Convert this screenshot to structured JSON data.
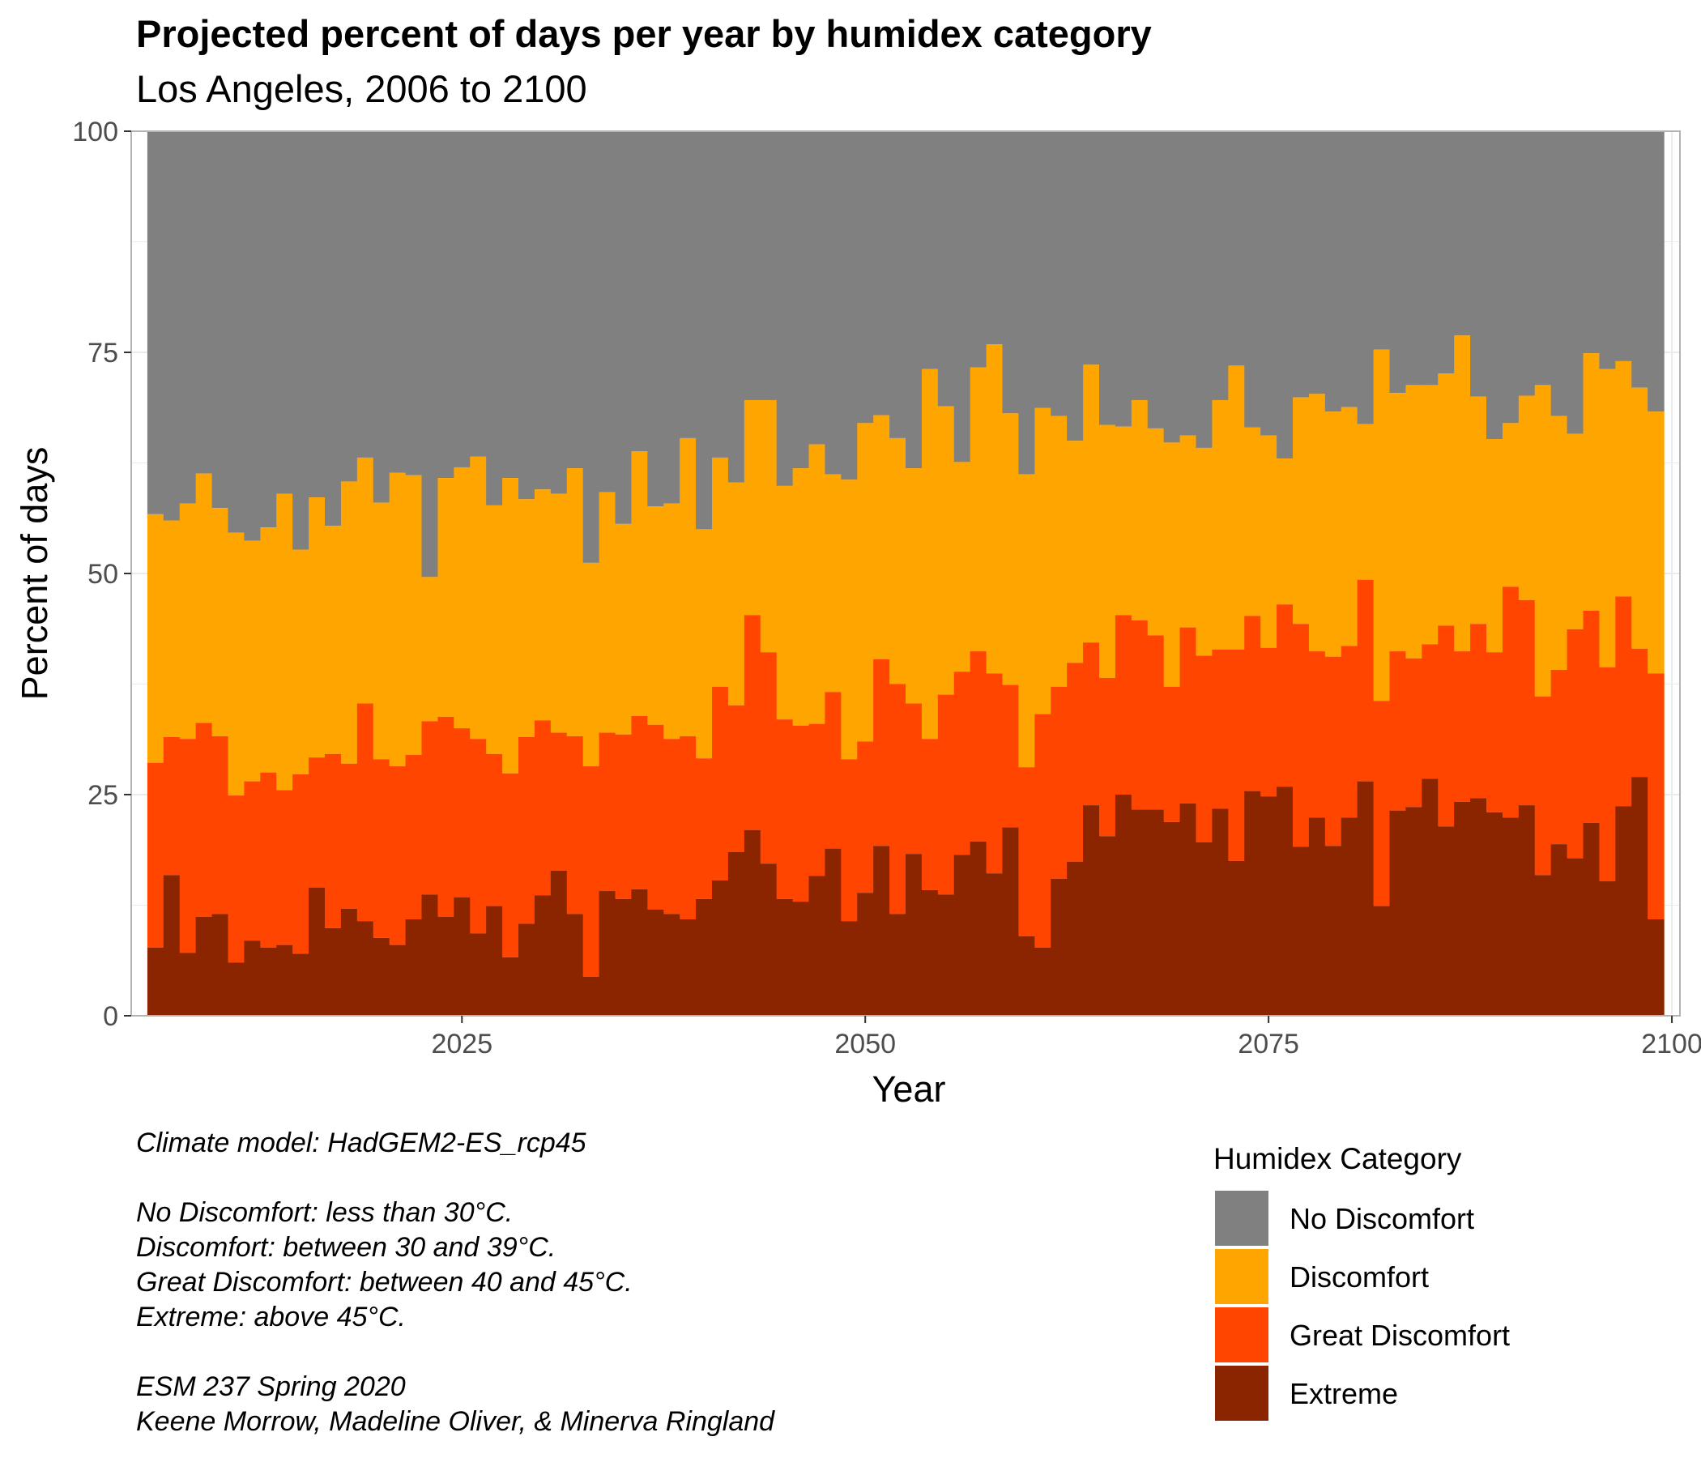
{
  "chart_data": {
    "type": "bar",
    "stacked": true,
    "title": "Projected percent of days per year by humidex category",
    "subtitle": "Los Angeles, 2006 to 2100",
    "xlabel": "Year",
    "ylabel": "Percent of days",
    "xlim": [
      2004.5,
      2100.5
    ],
    "ylim": [
      0,
      100
    ],
    "x_ticks": [
      "2025",
      "2050",
      "2075",
      "2100"
    ],
    "y_ticks": [
      "0",
      "25",
      "50",
      "75",
      "100"
    ],
    "grid": true,
    "legend": {
      "title": "Humidex Category",
      "position": "bottom-right",
      "entries": [
        "No Discomfort",
        "Discomfort",
        "Great Discomfort",
        "Extreme"
      ]
    },
    "colors": {
      "No Discomfort": "#808080",
      "Discomfort": "#FFA500",
      "Great Discomfort": "#FF4500",
      "Extreme": "#8B2500"
    },
    "years": [
      2006,
      2007,
      2008,
      2009,
      2010,
      2011,
      2012,
      2013,
      2014,
      2015,
      2016,
      2017,
      2018,
      2019,
      2020,
      2021,
      2022,
      2023,
      2024,
      2025,
      2026,
      2027,
      2028,
      2029,
      2030,
      2031,
      2032,
      2033,
      2034,
      2035,
      2036,
      2037,
      2038,
      2039,
      2040,
      2041,
      2042,
      2043,
      2044,
      2045,
      2046,
      2047,
      2048,
      2049,
      2050,
      2051,
      2052,
      2053,
      2054,
      2055,
      2056,
      2057,
      2058,
      2059,
      2060,
      2061,
      2062,
      2063,
      2064,
      2065,
      2066,
      2067,
      2068,
      2069,
      2070,
      2071,
      2072,
      2073,
      2074,
      2075,
      2076,
      2077,
      2078,
      2079,
      2080,
      2081,
      2082,
      2083,
      2084,
      2085,
      2086,
      2087,
      2088,
      2089,
      2090,
      2091,
      2092,
      2093,
      2094,
      2095,
      2096,
      2097,
      2098,
      2099
    ],
    "extreme_top": [
      7.7,
      15.9,
      7.1,
      11.2,
      11.5,
      6.0,
      8.5,
      7.7,
      8.0,
      7.0,
      14.5,
      9.9,
      12.1,
      10.7,
      8.8,
      8.0,
      10.9,
      13.7,
      11.2,
      13.4,
      9.3,
      12.4,
      6.6,
      10.4,
      13.6,
      16.4,
      11.5,
      4.4,
      14.1,
      13.2,
      14.3,
      12.0,
      11.5,
      10.9,
      13.2,
      15.3,
      18.5,
      21.0,
      17.2,
      13.2,
      12.9,
      15.8,
      18.9,
      10.7,
      13.9,
      19.2,
      11.5,
      18.3,
      14.2,
      13.7,
      18.2,
      19.7,
      16.1,
      21.3,
      9.0,
      7.7,
      15.5,
      17.4,
      23.8,
      20.3,
      25.0,
      23.3,
      23.3,
      21.9,
      24.0,
      19.6,
      23.4,
      17.5,
      25.4,
      24.8,
      25.9,
      19.1,
      22.4,
      19.2,
      22.4,
      26.5,
      12.4,
      23.2,
      23.6,
      26.8,
      21.4,
      24.2,
      24.6,
      23.0,
      22.4,
      23.8,
      15.9,
      19.4,
      17.8,
      21.8,
      15.2,
      23.7,
      27.0,
      10.9
    ],
    "great_discomfort_top": [
      28.6,
      31.5,
      31.3,
      33.1,
      31.6,
      24.9,
      26.5,
      27.5,
      25.5,
      27.3,
      29.2,
      29.6,
      28.5,
      35.3,
      29.0,
      28.2,
      29.5,
      33.3,
      33.8,
      32.5,
      31.3,
      29.6,
      27.4,
      31.5,
      33.4,
      32.0,
      31.6,
      28.2,
      32.0,
      31.8,
      33.9,
      32.9,
      31.3,
      31.6,
      29.1,
      37.2,
      35.1,
      45.3,
      41.1,
      33.5,
      32.8,
      33.0,
      36.6,
      29.0,
      31.0,
      40.3,
      37.5,
      35.3,
      31.3,
      36.3,
      38.9,
      41.2,
      38.7,
      37.4,
      28.1,
      34.1,
      37.2,
      39.9,
      42.2,
      38.2,
      45.3,
      44.7,
      43.0,
      37.2,
      43.9,
      40.7,
      41.4,
      41.4,
      45.2,
      41.6,
      46.5,
      44.3,
      41.2,
      40.6,
      41.8,
      49.3,
      35.6,
      41.2,
      40.4,
      42.0,
      44.1,
      41.2,
      44.3,
      41.1,
      48.5,
      47.0,
      36.1,
      39.1,
      43.7,
      45.8,
      39.4,
      47.4,
      41.5,
      38.7
    ],
    "discomfort_top": [
      56.7,
      56.0,
      57.9,
      61.3,
      57.4,
      54.6,
      53.7,
      55.2,
      59.0,
      52.7,
      58.6,
      55.4,
      60.4,
      63.1,
      58.0,
      61.4,
      61.1,
      49.6,
      60.8,
      62.0,
      63.2,
      57.7,
      60.8,
      58.4,
      59.5,
      59.0,
      61.9,
      51.2,
      59.2,
      55.6,
      63.8,
      57.6,
      57.9,
      65.3,
      55.0,
      63.1,
      60.3,
      69.6,
      69.6,
      59.9,
      61.9,
      64.6,
      61.2,
      60.6,
      67.0,
      67.9,
      65.3,
      61.9,
      73.1,
      68.9,
      62.6,
      73.3,
      75.9,
      68.1,
      61.2,
      68.7,
      67.8,
      65.0,
      73.6,
      66.8,
      66.6,
      69.6,
      66.4,
      64.8,
      65.6,
      64.2,
      69.6,
      73.5,
      66.5,
      65.6,
      63.0,
      69.9,
      70.3,
      68.3,
      68.8,
      66.9,
      75.3,
      70.4,
      71.3,
      71.3,
      72.6,
      76.9,
      70.0,
      65.2,
      67.0,
      70.1,
      71.3,
      67.8,
      65.8,
      74.9,
      73.1,
      74.0,
      71.0,
      68.3
    ],
    "no_discomfort_top": 100,
    "caption": [
      "Climate model:  HadGEM2-ES_rcp45",
      "",
      "No Discomfort: less than 30°C.",
      "Discomfort: between 30 and 39°C.",
      "Great Discomfort: between 40 and 45°C.",
      "Extreme: above 45°C.",
      "",
      "ESM 237 Spring 2020",
      "Keene Morrow, Madeline Oliver, & Minerva Ringland"
    ]
  }
}
